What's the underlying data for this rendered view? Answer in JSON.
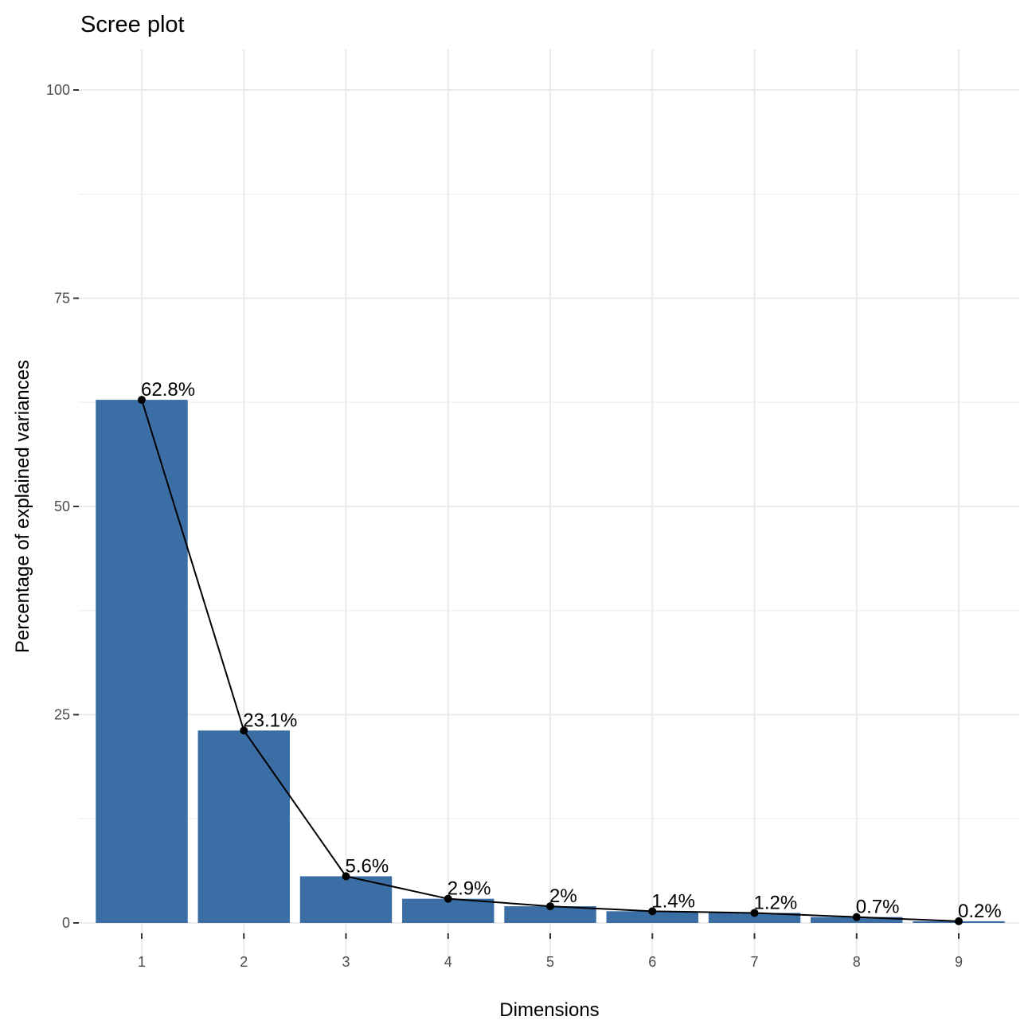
{
  "chart_data": {
    "type": "bar",
    "title": "Scree plot",
    "xlabel": "Dimensions",
    "ylabel": "Percentage of explained variances",
    "categories": [
      "1",
      "2",
      "3",
      "4",
      "5",
      "6",
      "7",
      "8",
      "9"
    ],
    "values": [
      62.8,
      23.1,
      5.6,
      2.9,
      2.0,
      1.4,
      1.2,
      0.7,
      0.2
    ],
    "data_labels": [
      "62.8%",
      "23.1%",
      "5.6%",
      "2.9%",
      "2%",
      "1.4%",
      "1.2%",
      "0.7%",
      "0.2%"
    ],
    "ylim": [
      0,
      100
    ],
    "yticks": [
      "0",
      "25",
      "50",
      "75",
      "100"
    ],
    "grid": true,
    "overlay_line": true,
    "bar_color": "#3A6EA5",
    "line_color": "#000000"
  }
}
